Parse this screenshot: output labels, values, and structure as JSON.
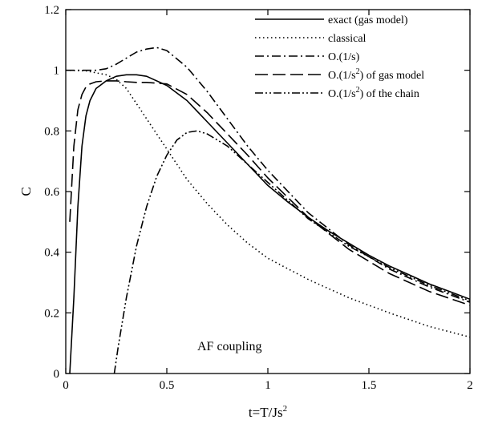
{
  "chart_data": {
    "type": "line",
    "title": "",
    "xlabel": "t=T/Js",
    "xlabel_sup": "2",
    "ylabel": "C",
    "xlim": [
      0,
      2
    ],
    "ylim": [
      0,
      1.2
    ],
    "xticks": [
      0,
      0.5,
      1,
      1.5,
      2
    ],
    "xtick_labels": [
      "0",
      "0.5",
      "1",
      "1.5",
      "2"
    ],
    "yticks": [
      0,
      0.2,
      0.4,
      0.6,
      0.8,
      1,
      1.2
    ],
    "ytick_labels": [
      "0",
      "0.2",
      "0.4",
      "0.6",
      "0.8",
      "1",
      "1.2"
    ],
    "grid": false,
    "legend_position": "top-right",
    "annotation": "AF coupling",
    "series": [
      {
        "name": "exact (gas model)",
        "legend": {
          "pre": "exact (gas model)",
          "sup": "",
          "post": ""
        },
        "dash": "solid",
        "x": [
          0.02,
          0.04,
          0.06,
          0.08,
          0.1,
          0.12,
          0.15,
          0.2,
          0.25,
          0.3,
          0.35,
          0.4,
          0.5,
          0.6,
          0.7,
          0.8,
          0.9,
          1.0,
          1.1,
          1.2,
          1.3,
          1.4,
          1.5,
          1.6,
          1.7,
          1.8,
          1.9,
          2.0
        ],
        "y": [
          0.0,
          0.25,
          0.55,
          0.75,
          0.85,
          0.9,
          0.94,
          0.965,
          0.98,
          0.985,
          0.985,
          0.98,
          0.95,
          0.9,
          0.83,
          0.76,
          0.69,
          0.62,
          0.565,
          0.515,
          0.47,
          0.43,
          0.39,
          0.355,
          0.325,
          0.295,
          0.27,
          0.245
        ]
      },
      {
        "name": "classical",
        "legend": {
          "pre": "classical",
          "sup": "",
          "post": ""
        },
        "dash": "dotted",
        "x": [
          0.0,
          0.1,
          0.2,
          0.25,
          0.3,
          0.35,
          0.4,
          0.5,
          0.6,
          0.7,
          0.8,
          0.9,
          1.0,
          1.2,
          1.4,
          1.6,
          1.8,
          2.0
        ],
        "y": [
          1.0,
          0.998,
          0.985,
          0.97,
          0.94,
          0.89,
          0.84,
          0.74,
          0.64,
          0.56,
          0.49,
          0.43,
          0.38,
          0.31,
          0.25,
          0.2,
          0.155,
          0.12
        ]
      },
      {
        "name": "O.(1/s)",
        "legend": {
          "pre": "O.(1/s)",
          "sup": "",
          "post": ""
        },
        "dash": "dashdot",
        "x": [
          0.0,
          0.15,
          0.2,
          0.25,
          0.3,
          0.35,
          0.4,
          0.45,
          0.5,
          0.6,
          0.7,
          0.8,
          0.9,
          1.0,
          1.2,
          1.4,
          1.6,
          1.8,
          2.0
        ],
        "y": [
          1.0,
          1.0,
          1.005,
          1.02,
          1.04,
          1.06,
          1.07,
          1.075,
          1.065,
          1.01,
          0.93,
          0.84,
          0.75,
          0.67,
          0.53,
          0.425,
          0.345,
          0.285,
          0.235
        ]
      },
      {
        "name": "O.(1/s2) of gas model",
        "legend": {
          "pre": "O.(1/s",
          "sup": "2",
          "post": ") of gas model"
        },
        "dash": "longdash",
        "x": [
          0.02,
          0.04,
          0.06,
          0.08,
          0.1,
          0.12,
          0.15,
          0.2,
          0.25,
          0.3,
          0.35,
          0.4,
          0.5,
          0.6,
          0.7,
          0.8,
          0.9,
          1.0,
          1.2,
          1.4,
          1.6,
          1.8,
          2.0
        ],
        "y": [
          0.5,
          0.75,
          0.87,
          0.92,
          0.945,
          0.955,
          0.962,
          0.965,
          0.965,
          0.962,
          0.96,
          0.96,
          0.955,
          0.92,
          0.86,
          0.79,
          0.72,
          0.645,
          0.515,
          0.41,
          0.33,
          0.27,
          0.225
        ]
      },
      {
        "name": "O.(1/s2) of the chain",
        "legend": {
          "pre": "O.(1/s",
          "sup": "2",
          "post": ") of the chain"
        },
        "dash": "dashdotdot",
        "x": [
          0.24,
          0.26,
          0.3,
          0.35,
          0.4,
          0.45,
          0.5,
          0.55,
          0.6,
          0.65,
          0.7,
          0.8,
          0.9,
          1.0,
          1.2,
          1.4,
          1.6,
          1.8,
          2.0
        ],
        "y": [
          0.0,
          0.09,
          0.25,
          0.42,
          0.55,
          0.65,
          0.72,
          0.77,
          0.795,
          0.8,
          0.79,
          0.75,
          0.69,
          0.63,
          0.51,
          0.42,
          0.35,
          0.29,
          0.24
        ]
      }
    ]
  }
}
